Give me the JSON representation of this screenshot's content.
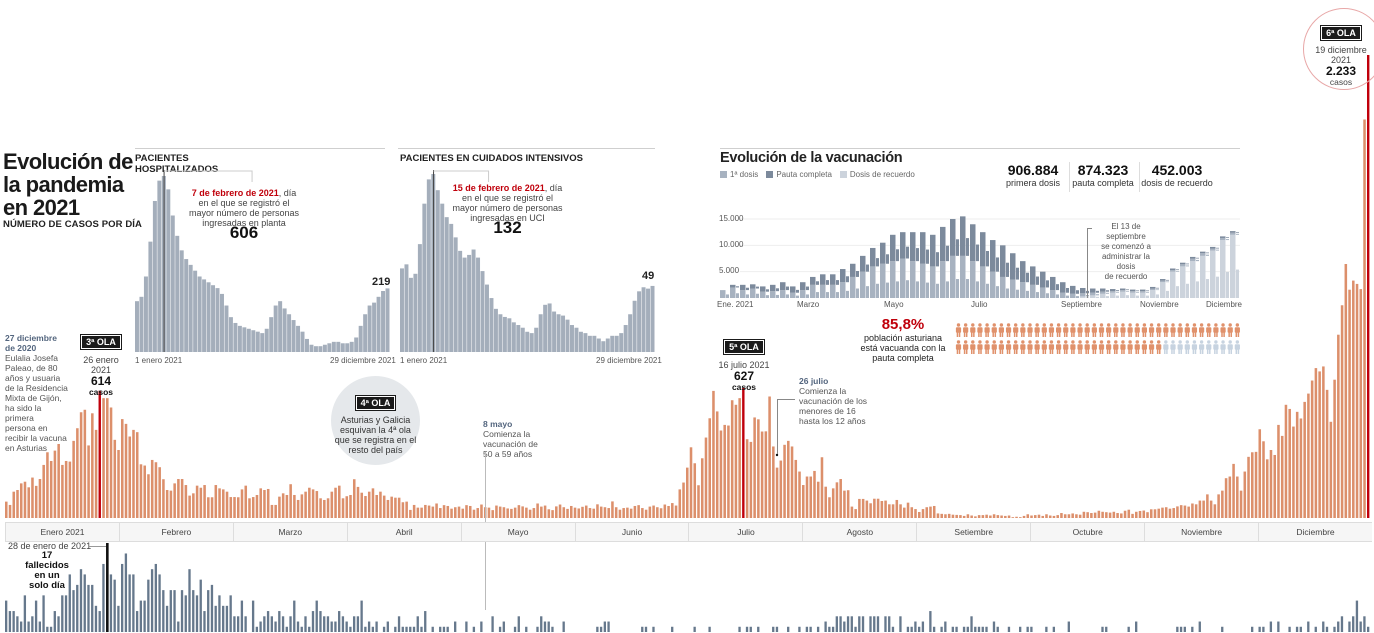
{
  "title": {
    "line1": "Evolución de",
    "line2": "la pandemia",
    "line3": "en 2021",
    "subtitle": "NÚMERO DE CASOS POR DÍA"
  },
  "hospital": {
    "label_1": "PACIENTES",
    "label_2": "HOSPITALIZADOS",
    "note_date": "7 de febrero de 2021",
    "note_rest": ", día",
    "note_l2": "en el que se registró el",
    "note_l3": "mayor número de personas",
    "note_l4": "ingresadas en planta",
    "peak": "606",
    "last": "219",
    "x_start": "1 enero 2021",
    "x_end": "29 diciembre 2021"
  },
  "uci": {
    "label": "PACIENTES EN CUIDADOS INTENSIVOS",
    "note_date": "15 de febrero de 2021",
    "note_rest": ", día",
    "note_l2": "en el que se registró el",
    "note_l3": "mayor número de personas",
    "note_l4": "ingresadas en UCI",
    "peak": "132",
    "last": "49",
    "x_start": "1 enero 2021",
    "x_end": "29 diciembre 2021"
  },
  "vaccination": {
    "title": "Evolución de la vacunación",
    "legend": [
      {
        "label": "1ª dosis",
        "color": "#a7b2c0"
      },
      {
        "label": "Pauta completa",
        "color": "#7c8a9c"
      },
      {
        "label": "Dosis de recuerdo",
        "color": "#ccd3dc"
      }
    ],
    "stats": [
      {
        "value": "906.884",
        "label": "primera dosis"
      },
      {
        "value": "874.323",
        "label": "pauta completa"
      },
      {
        "value": "452.003",
        "label": "dosis de recuerdo"
      }
    ],
    "y_ticks": [
      "15.000",
      "10.000",
      "5.000"
    ],
    "x_ticks": [
      "Ene. 2021",
      "Marzo",
      "Mayo",
      "Julio",
      "Septiembre",
      "Noviembre",
      "Diciembre"
    ],
    "note": [
      "El 13 de septiembre",
      "se comenzó a",
      "administrar la dosis",
      "de recuerdo"
    ],
    "percent": "85,8%",
    "percent_value": 85.8,
    "percent_text": [
      "población asturiana",
      "está vacuanda con la",
      "pauta completa"
    ],
    "pictogram_colors": {
      "vaccinated": "#e0916b",
      "not_vaccinated": "#c7d3e0"
    }
  },
  "annotations": {
    "first_vaccine": {
      "date_1": "27 diciembre",
      "date_2": "de 2020",
      "lines": [
        "Eulalia Josefa",
        "Paleao, de 80",
        "años y usuaria",
        "de la Residencia",
        "Mixta de Gijón,",
        "ha sido la",
        "primera",
        "persona en",
        "recibir la vacuna",
        "en Asturias"
      ]
    },
    "wave3": {
      "badge": "3ª OLA",
      "date_1": "26 enero",
      "date_2": "2021",
      "value": "614",
      "unit": "casos"
    },
    "wave4": {
      "badge": "4ª OLA",
      "lines": [
        "Asturias y Galicia",
        "esquivan la 4ª ola",
        "que se registra en el",
        "resto del país"
      ]
    },
    "wave5": {
      "badge": "5ª OLA",
      "date": "16 julio 2021",
      "value": "627",
      "unit": "casos"
    },
    "wave6": {
      "badge": "6ª OLA",
      "date_1": "19 diciembre",
      "date_2": "2021",
      "value": "2.233",
      "unit": "casos"
    },
    "may8": {
      "date": "8 mayo",
      "lines": [
        "Comienza la",
        "vacunación de",
        "50 a 59 años"
      ]
    },
    "jul26": {
      "date": "26 julio",
      "lines": [
        "Comienza la",
        "vacunación de los",
        "menores de 16",
        "hasta los 12 años"
      ]
    },
    "deaths": {
      "date": "28 de enero de 2021",
      "value": "17",
      "lines": [
        "fallecidos",
        "en un",
        "solo día"
      ]
    }
  },
  "months": [
    "Enero 2021",
    "Febrero",
    "Marzo",
    "Abril",
    "Mayo",
    "Junio",
    "Julio",
    "Agosto",
    "Setiembre",
    "Octubre",
    "Noviembre",
    "Diciembre"
  ],
  "colors": {
    "cases": "#dc8f6b",
    "highlight": "#c0000b",
    "deaths": "#66788c",
    "deaths_highlight": "#111111",
    "hospital": "#a4aebb"
  },
  "chart_data": [
    {
      "id": "cases",
      "type": "bar",
      "ylabel": "",
      "ylim": [
        0,
        2233
      ],
      "highlight_values": [
        614,
        627,
        2233
      ],
      "values": [
        79,
        63,
        127,
        135,
        167,
        175,
        148,
        195,
        155,
        188,
        256,
        317,
        275,
        325,
        357,
        256,
        275,
        272,
        372,
        433,
        510,
        522,
        350,
        505,
        425,
        614,
        578,
        578,
        533,
        377,
        328,
        477,
        454,
        393,
        425,
        414,
        259,
        253,
        211,
        280,
        269,
        245,
        187,
        135,
        132,
        167,
        188,
        188,
        159,
        108,
        119,
        156,
        146,
        159,
        100,
        100,
        159,
        143,
        138,
        127,
        101,
        101,
        100,
        138,
        156,
        95,
        101,
        111,
        143,
        135,
        140,
        63,
        63,
        103,
        119,
        111,
        163,
        111,
        87,
        114,
        127,
        146,
        138,
        130,
        95,
        87,
        95,
        127,
        146,
        156,
        95,
        105,
        111,
        187,
        150,
        122,
        106,
        127,
        143,
        111,
        127,
        108,
        87,
        103,
        98,
        98,
        76,
        79,
        39,
        63,
        50,
        50,
        63,
        60,
        55,
        70,
        48,
        62,
        58,
        45,
        52,
        55,
        45,
        62,
        58,
        40,
        48,
        65,
        52,
        50,
        38,
        60,
        55,
        52,
        46,
        44,
        50,
        62,
        56,
        50,
        40,
        48,
        70,
        55,
        60,
        42,
        38,
        56,
        65,
        52,
        44,
        58,
        50,
        46,
        54,
        60,
        48,
        45,
        66,
        55,
        52,
        48,
        80,
        52,
        40,
        48,
        50,
        45,
        58,
        62,
        48,
        40,
        55,
        60,
        52,
        47,
        65,
        58,
        72,
        60,
        138,
        171,
        243,
        341,
        264,
        158,
        288,
        388,
        481,
        613,
        514,
        422,
        449,
        446,
        568,
        546,
        578,
        627,
        380,
        367,
        485,
        476,
        417,
        418,
        586,
        345,
        243,
        277,
        353,
        372,
        345,
        280,
        224,
        159,
        200,
        200,
        227,
        175,
        293,
        151,
        100,
        143,
        172,
        188,
        132,
        134,
        55,
        43,
        92,
        92,
        84,
        71,
        93,
        93,
        82,
        84,
        66,
        66,
        87,
        66,
        50,
        74,
        52,
        43,
        29,
        43,
        52,
        55,
        58,
        22,
        20,
        18,
        20,
        16,
        15,
        14,
        10,
        18,
        12,
        8,
        14,
        14,
        16,
        12,
        18,
        14,
        12,
        10,
        12,
        4,
        6,
        4,
        10,
        18,
        12,
        14,
        16,
        10,
        18,
        12,
        10,
        14,
        24,
        18,
        18,
        22,
        18,
        16,
        30,
        28,
        24,
        26,
        35,
        30,
        28,
        26,
        30,
        24,
        22,
        35,
        40,
        20,
        30,
        34,
        36,
        28,
        42,
        42,
        45,
        50,
        52,
        45,
        48,
        56,
        62,
        60,
        55,
        70,
        66,
        84,
        84,
        114,
        84,
        66,
        114,
        132,
        192,
        200,
        261,
        200,
        132,
        224,
        295,
        317,
        319,
        428,
        370,
        283,
        328,
        304,
        449,
        396,
        546,
        526,
        441,
        512,
        480,
        560,
        600,
        663,
        723,
        707,
        731,
        618,
        464,
        667,
        884,
        1026,
        1225,
        1101,
        1145,
        1129,
        1104,
        1922,
        2233
      ]
    },
    {
      "id": "deaths",
      "type": "bar",
      "ylim": [
        0,
        17
      ],
      "highlight_values": [
        17
      ],
      "values": [
        6,
        4,
        4,
        3,
        2,
        7,
        2,
        3,
        6,
        2,
        7,
        1,
        1,
        4,
        3,
        7,
        7,
        11,
        8,
        9,
        12,
        11,
        9,
        9,
        5,
        4,
        13,
        17,
        11,
        10,
        5,
        13,
        15,
        11,
        11,
        4,
        6,
        6,
        10,
        12,
        13,
        11,
        8,
        5,
        8,
        8,
        2,
        8,
        7,
        12,
        8,
        7,
        10,
        4,
        8,
        9,
        5,
        7,
        5,
        5,
        7,
        3,
        3,
        6,
        3,
        0,
        6,
        1,
        2,
        3,
        4,
        3,
        2,
        4,
        3,
        1,
        3,
        6,
        2,
        1,
        3,
        1,
        4,
        6,
        4,
        3,
        3,
        2,
        2,
        4,
        3,
        2,
        1,
        3,
        3,
        6,
        1,
        2,
        1,
        2,
        0,
        1,
        2,
        0,
        1,
        3,
        1,
        1,
        1,
        1,
        3,
        1,
        4,
        0,
        1,
        0,
        1,
        1,
        1,
        0,
        2,
        0,
        0,
        2,
        0,
        1,
        0,
        2,
        0,
        0,
        3,
        0,
        1,
        2,
        0,
        0,
        1,
        3,
        0,
        1,
        0,
        0,
        1,
        3,
        2,
        2,
        1,
        0,
        0,
        2,
        0,
        0,
        0,
        0,
        0,
        0,
        0,
        0,
        1,
        1,
        2,
        2,
        0,
        0,
        0,
        0,
        0,
        0,
        0,
        0,
        1,
        1,
        0,
        1,
        0,
        0,
        0,
        0,
        1,
        0,
        0,
        0,
        0,
        0,
        1,
        0,
        0,
        0,
        1,
        0,
        0,
        0,
        0,
        0,
        0,
        0,
        1,
        0,
        1,
        1,
        0,
        1,
        0,
        0,
        0,
        1,
        1,
        0,
        0,
        1,
        0,
        0,
        1,
        0,
        1,
        1,
        0,
        1,
        0,
        2,
        1,
        1,
        3,
        3,
        2,
        3,
        3,
        1,
        3,
        3,
        0,
        3,
        3,
        3,
        0,
        3,
        3,
        1,
        0,
        3,
        0,
        1,
        1,
        2,
        1,
        2,
        0,
        4,
        1,
        0,
        1,
        2,
        0,
        1,
        1,
        0,
        1,
        1,
        3,
        1,
        1,
        1,
        1,
        0,
        2,
        1,
        0,
        0,
        1,
        0,
        0,
        1,
        0,
        1,
        1,
        0,
        0,
        0,
        1,
        0,
        1,
        0,
        0,
        0,
        2,
        0,
        0,
        0,
        0,
        0,
        0,
        0,
        0,
        1,
        1,
        0,
        0,
        0,
        0,
        0,
        1,
        0,
        2,
        0,
        0,
        0,
        0,
        0,
        0,
        0,
        0,
        0,
        0,
        1,
        1,
        1,
        0,
        1,
        0,
        2,
        0,
        0,
        0,
        0,
        0,
        1,
        0,
        0,
        0,
        0,
        0,
        0,
        0,
        1,
        0,
        1,
        1,
        0,
        2,
        0,
        2,
        0,
        0,
        1,
        0,
        1,
        1,
        0,
        2,
        0,
        1,
        0,
        2,
        1,
        0,
        1,
        2,
        3,
        0,
        2,
        3,
        6,
        2,
        3,
        1,
        0,
        4,
        1,
        4,
        3,
        2,
        3,
        4,
        3,
        2,
        4,
        3
      ]
    },
    {
      "id": "hospital",
      "type": "bar",
      "ylim": [
        0,
        606
      ],
      "peak_value": 606,
      "values": [
        175,
        190,
        260,
        380,
        520,
        590,
        606,
        560,
        470,
        400,
        350,
        320,
        300,
        280,
        260,
        250,
        240,
        230,
        220,
        200,
        160,
        120,
        100,
        90,
        85,
        80,
        75,
        70,
        65,
        80,
        120,
        160,
        175,
        150,
        130,
        110,
        90,
        70,
        45,
        25,
        20,
        20,
        25,
        30,
        35,
        35,
        30,
        30,
        35,
        50,
        90,
        130,
        160,
        170,
        190,
        210,
        219
      ]
    },
    {
      "id": "uci",
      "type": "bar",
      "ylim": [
        0,
        132
      ],
      "peak_value": 132,
      "values": [
        62,
        65,
        55,
        58,
        80,
        110,
        128,
        132,
        120,
        110,
        100,
        95,
        85,
        75,
        70,
        72,
        76,
        70,
        60,
        50,
        40,
        32,
        28,
        26,
        25,
        22,
        20,
        18,
        15,
        14,
        18,
        28,
        35,
        36,
        30,
        28,
        27,
        24,
        20,
        18,
        15,
        14,
        12,
        12,
        10,
        8,
        10,
        12,
        12,
        14,
        20,
        28,
        38,
        45,
        48,
        47,
        49
      ]
    },
    {
      "id": "vaccination",
      "type": "bar",
      "stacked": true,
      "ylim": [
        0,
        16000
      ],
      "series": [
        {
          "name": "1ª dosis",
          "values": [
            1500,
            2000,
            1500,
            1800,
            1200,
            1300,
            1500,
            1000,
            1500,
            2500,
            2500,
            2500,
            3000,
            4000,
            5000,
            6000,
            6500,
            7000,
            7500,
            7000,
            6500,
            6000,
            7000,
            8000,
            8000,
            7000,
            6000,
            5000,
            4000,
            3500,
            3000,
            2500,
            2000,
            1500,
            1000,
            800,
            600,
            500,
            400,
            300,
            300,
            300,
            300,
            300,
            300,
            300,
            400,
            500,
            500,
            400,
            400,
            400
          ]
        },
        {
          "name": "Pauta completa",
          "values": [
            0,
            500,
            1000,
            800,
            1000,
            1200,
            1500,
            1200,
            1500,
            1500,
            2000,
            2000,
            2500,
            2500,
            3000,
            3500,
            4000,
            5000,
            5000,
            5500,
            6000,
            6000,
            6500,
            7000,
            7500,
            7000,
            6500,
            6000,
            6000,
            5000,
            4000,
            3500,
            3000,
            2500,
            2000,
            1500,
            1000,
            800,
            600,
            400,
            300,
            300,
            300,
            300,
            300,
            300,
            300,
            300,
            300,
            300,
            300,
            300
          ]
        },
        {
          "name": "Dosis de recuerdo",
          "values": [
            0,
            0,
            0,
            0,
            0,
            0,
            0,
            0,
            0,
            0,
            0,
            0,
            0,
            0,
            0,
            0,
            0,
            0,
            0,
            0,
            0,
            0,
            0,
            0,
            0,
            0,
            0,
            0,
            0,
            0,
            0,
            0,
            0,
            0,
            0,
            0,
            300,
            500,
            800,
            1000,
            1200,
            1000,
            1000,
            1500,
            3000,
            5000,
            6000,
            7000,
            8000,
            9000,
            11000,
            12000
          ]
        }
      ]
    }
  ]
}
